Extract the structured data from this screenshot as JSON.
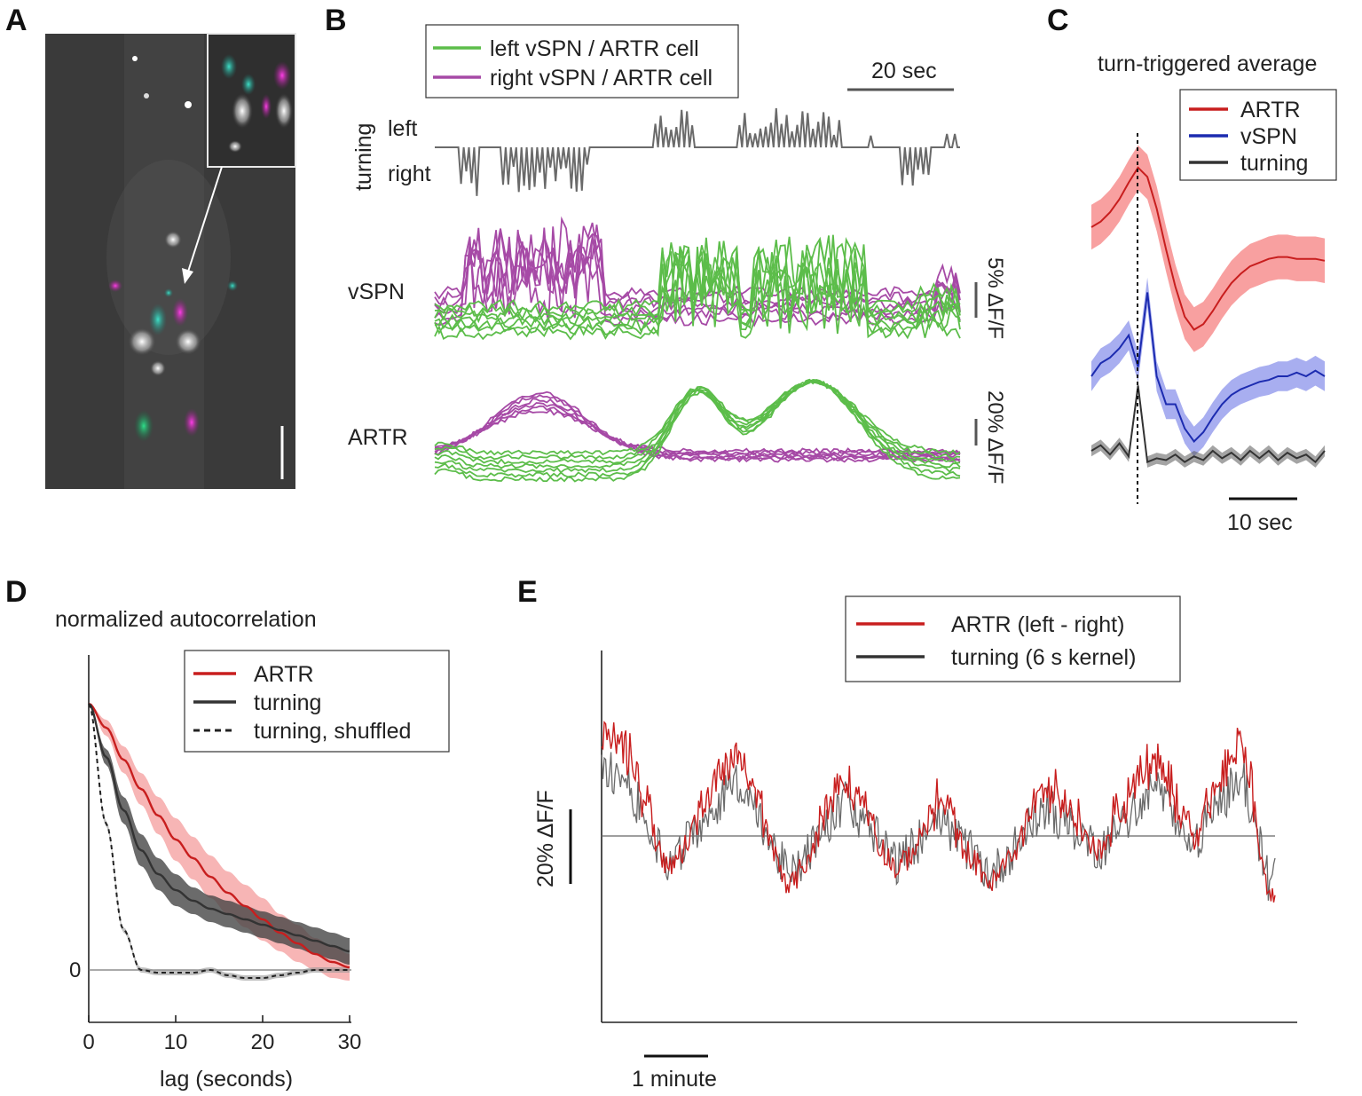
{
  "panel_labels": {
    "a": "A",
    "b": "B",
    "c": "C",
    "d": "D",
    "e": "E"
  },
  "colors": {
    "left_green": "#5cbd4a",
    "right_magenta": "#a64aa6",
    "artr_red": "#c81e1e",
    "vspn_blue": "#1c2bb0",
    "turning_black": "#333333",
    "turning_gray": "#6a6a6a"
  },
  "panel_a": {
    "description_items": [
      "fluorescence-image",
      "inset-image",
      "arrow-icon",
      "scale-bar"
    ]
  },
  "panel_b": {
    "legend": [
      "left vSPN / ARTR cell",
      "right vSPN / ARTR cell"
    ],
    "time_scale": "20 sec",
    "turning_axis": {
      "label": "turning",
      "left": "left",
      "right": "right"
    },
    "row_labels": {
      "vspn": "vSPN",
      "artr": "ARTR"
    },
    "vspn_scale": "5% ΔF/F",
    "artr_scale": "20% ΔF/F"
  },
  "panel_c": {
    "title": "turn-triggered average",
    "legend": [
      "ARTR",
      "vSPN",
      "turning"
    ],
    "time_scale": "10 sec"
  },
  "panel_d": {
    "title": "normalized autocorrelation",
    "legend": [
      "ARTR",
      "turning",
      "turning, shuffled"
    ],
    "xlabel": "lag (seconds)",
    "xticks": [
      "0",
      "10",
      "20",
      "30"
    ],
    "ytick_zero": "0"
  },
  "panel_e": {
    "legend": [
      "ARTR (left - right)",
      "turning (6 s kernel)"
    ],
    "ylabel_scale": "20% ΔF/F",
    "time_scale": "1 minute"
  },
  "chart_data": [
    {
      "panel": "D",
      "type": "line",
      "title": "normalized autocorrelation",
      "xlabel": "lag (seconds)",
      "xlim": [
        0,
        30
      ],
      "ylim": [
        -0.15,
        1.0
      ],
      "x": [
        0,
        2,
        4,
        6,
        8,
        10,
        12,
        14,
        16,
        18,
        20,
        22,
        24,
        26,
        28,
        30
      ],
      "series": [
        {
          "name": "ARTR",
          "color": "#c81e1e",
          "values": [
            1.0,
            0.91,
            0.79,
            0.68,
            0.58,
            0.49,
            0.42,
            0.35,
            0.29,
            0.24,
            0.19,
            0.14,
            0.1,
            0.06,
            0.03,
            0.01
          ],
          "band": [
            0.0,
            0.03,
            0.05,
            0.06,
            0.07,
            0.08,
            0.08,
            0.08,
            0.08,
            0.08,
            0.08,
            0.07,
            0.07,
            0.06,
            0.06,
            0.05
          ]
        },
        {
          "name": "turning",
          "color": "#333333",
          "values": [
            1.0,
            0.8,
            0.6,
            0.45,
            0.36,
            0.3,
            0.26,
            0.23,
            0.21,
            0.19,
            0.17,
            0.15,
            0.13,
            0.11,
            0.09,
            0.07
          ],
          "band": [
            0.0,
            0.03,
            0.05,
            0.06,
            0.06,
            0.06,
            0.05,
            0.05,
            0.05,
            0.05,
            0.05,
            0.05,
            0.05,
            0.05,
            0.05,
            0.05
          ]
        },
        {
          "name": "turning, shuffled",
          "color": "#222222",
          "dashed": true,
          "values": [
            1.0,
            0.55,
            0.15,
            0.0,
            -0.01,
            -0.01,
            -0.01,
            0.0,
            -0.02,
            -0.03,
            -0.03,
            -0.02,
            -0.01,
            0.0,
            0.0,
            0.0
          ],
          "band": [
            0,
            0.01,
            0.01,
            0.01,
            0.01,
            0.01,
            0.01,
            0.01,
            0.01,
            0.01,
            0.01,
            0.01,
            0.01,
            0.01,
            0.01,
            0.01
          ]
        }
      ]
    },
    {
      "panel": "C",
      "type": "line",
      "title": "turn-triggered average",
      "x": [
        -5,
        -4,
        -3,
        -2,
        -1,
        0,
        1,
        2,
        3,
        4,
        5,
        6,
        7,
        8,
        9,
        10,
        11,
        12,
        13,
        14,
        15,
        16,
        17,
        18,
        19,
        20
      ],
      "series": [
        {
          "name": "ARTR",
          "color": "#c81e1e",
          "values": [
            0.4,
            0.43,
            0.48,
            0.55,
            0.64,
            0.72,
            0.67,
            0.5,
            0.28,
            0.08,
            -0.08,
            -0.15,
            -0.12,
            -0.05,
            0.03,
            0.1,
            0.15,
            0.19,
            0.21,
            0.23,
            0.24,
            0.24,
            0.23,
            0.23,
            0.23,
            0.22
          ],
          "band": 0.12
        },
        {
          "name": "vSPN",
          "color": "#1c2bb0",
          "values": [
            -0.4,
            -0.33,
            -0.3,
            -0.25,
            -0.18,
            -0.35,
            0.05,
            -0.4,
            -0.55,
            -0.55,
            -0.68,
            -0.75,
            -0.7,
            -0.62,
            -0.55,
            -0.5,
            -0.47,
            -0.45,
            -0.43,
            -0.42,
            -0.4,
            -0.4,
            -0.38,
            -0.4,
            -0.37,
            -0.4
          ],
          "band": 0.08
        },
        {
          "name": "turning",
          "color": "#333333",
          "values": [
            -0.8,
            -0.77,
            -0.82,
            -0.76,
            -0.83,
            -0.45,
            -0.86,
            -0.84,
            -0.85,
            -0.82,
            -0.86,
            -0.83,
            -0.85,
            -0.8,
            -0.84,
            -0.81,
            -0.85,
            -0.8,
            -0.84,
            -0.8,
            -0.85,
            -0.81,
            -0.84,
            -0.82,
            -0.86,
            -0.8
          ],
          "band": 0.03
        }
      ]
    }
  ]
}
